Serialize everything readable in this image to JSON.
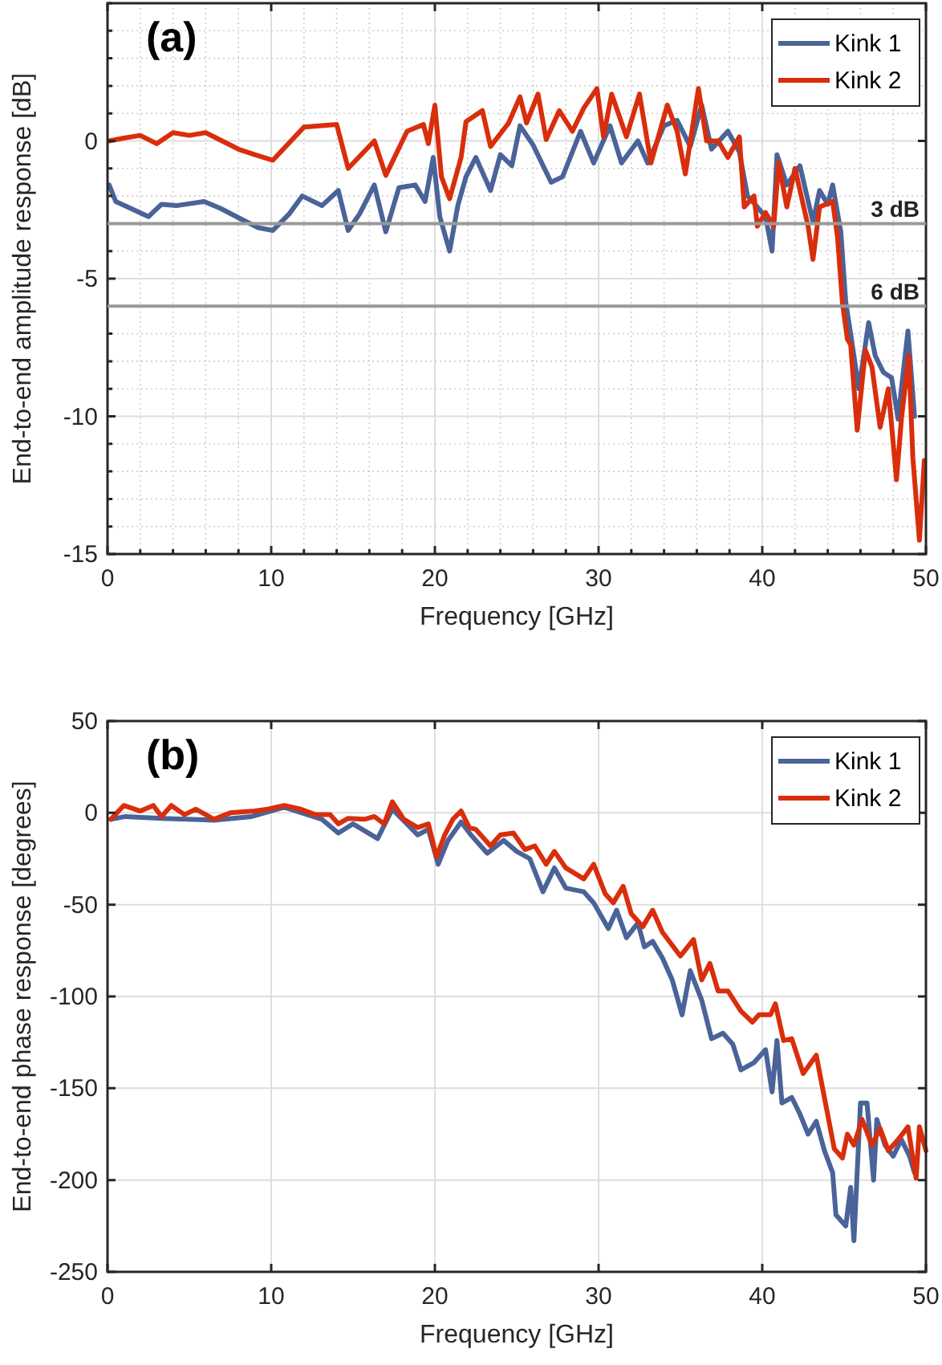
{
  "chart_data": [
    {
      "type": "line",
      "annotations": [
        "(a)"
      ],
      "xlabel": "Frequency [GHz]",
      "ylabel": "End-to-end amplitude response [dB]",
      "xlim": [
        0,
        50
      ],
      "ylim": [
        -15,
        5
      ],
      "xticks": [
        0,
        {
          "value": 2,
          "label": null
        },
        {
          "value": 4,
          "label": null
        },
        {
          "value": 6,
          "label": null
        },
        {
          "value": 8,
          "label": null
        },
        10,
        {
          "value": 12,
          "label": null
        },
        {
          "value": 14,
          "label": null
        },
        {
          "value": 16,
          "label": null
        },
        {
          "value": 18,
          "label": null
        },
        20,
        {
          "value": 22,
          "label": null
        },
        {
          "value": 24,
          "label": null
        },
        {
          "value": 26,
          "label": null
        },
        {
          "value": 28,
          "label": null
        },
        30,
        {
          "value": 32,
          "label": null
        },
        {
          "value": 34,
          "label": null
        },
        {
          "value": 36,
          "label": null
        },
        {
          "value": 38,
          "label": null
        },
        40,
        {
          "value": 42,
          "label": null
        },
        {
          "value": 44,
          "label": null
        },
        {
          "value": 46,
          "label": null
        },
        {
          "value": 48,
          "label": null
        },
        50
      ],
      "yticks": [
        -15,
        {
          "value": -14,
          "label": null
        },
        {
          "value": -13,
          "label": null
        },
        {
          "value": -12,
          "label": null
        },
        {
          "value": -11,
          "label": null
        },
        -10,
        {
          "value": -9,
          "label": null
        },
        {
          "value": -8,
          "label": null
        },
        {
          "value": -7,
          "label": null
        },
        -5,
        {
          "value": -4,
          "label": null
        },
        {
          "value": -2,
          "label": null
        },
        {
          "value": -1,
          "label": null
        },
        0,
        {
          "value": 1,
          "label": null
        },
        {
          "value": 2,
          "label": null
        },
        {
          "value": 3,
          "label": null
        },
        {
          "value": 4,
          "label": null
        },
        {
          "value": 5,
          "label": null
        }
      ],
      "grid": true,
      "legend": "top right",
      "line_style": "solid",
      "ref_lines": [
        {
          "axis": "y",
          "value": -3,
          "label": "3 dB",
          "color": "#999999"
        },
        {
          "axis": "y",
          "value": -6,
          "label": "6 dB",
          "color": "#999999"
        }
      ],
      "series": [
        {
          "name": "Kink 1",
          "color": "#4a6398",
          "x": [
            0.1,
            0.5,
            1.6,
            2.5,
            3.3,
            4.2,
            5.9,
            6.9,
            8.2,
            9.2,
            10.1,
            11.1,
            11.9,
            13.1,
            14.1,
            14.7,
            15.4,
            16.3,
            17,
            17.8,
            18.8,
            19.4,
            19.9,
            20.3,
            20.9,
            21.4,
            21.9,
            22.5,
            23.4,
            24,
            24.7,
            25.2,
            26,
            27.1,
            27.8,
            28.9,
            29.7,
            30.7,
            31.4,
            32.4,
            33,
            34,
            34.8,
            35.6,
            36.3,
            36.9,
            37.9,
            38.6,
            39.1,
            39.7,
            40.2,
            40.6,
            40.9,
            41.5,
            42.3,
            43.1,
            43.5,
            44,
            44.3,
            44.8,
            45.1,
            45.4,
            45.9,
            46.5,
            46.9,
            47.4,
            47.9,
            48.3,
            48.5,
            48.9,
            49.3
          ],
          "values": [
            -1.6,
            -2.2,
            -2.5,
            -2.75,
            -2.3,
            -2.35,
            -2.2,
            -2.45,
            -2.85,
            -3.15,
            -3.25,
            -2.65,
            -2,
            -2.35,
            -1.8,
            -3.25,
            -2.65,
            -1.6,
            -3.3,
            -1.7,
            -1.6,
            -2.2,
            -0.6,
            -2.75,
            -4,
            -2.35,
            -1.3,
            -0.6,
            -1.8,
            -0.5,
            -0.9,
            0.55,
            -0.15,
            -1.5,
            -1.3,
            0.35,
            -0.8,
            0.55,
            -0.8,
            0,
            -0.8,
            0.55,
            0.75,
            -0.2,
            1.3,
            -0.3,
            0.35,
            -0.4,
            -2,
            -2.4,
            -2.75,
            -4,
            -0.5,
            -1.6,
            -0.9,
            -2.95,
            -1.8,
            -2.3,
            -1.6,
            -3.3,
            -5.85,
            -7,
            -9,
            -6.6,
            -7.8,
            -8.4,
            -8.6,
            -10.1,
            -9,
            -6.9,
            -10
          ]
        },
        {
          "name": "Kink 2",
          "color": "#d92e0c",
          "x": [
            0.1,
            1,
            2,
            3,
            4,
            5,
            6,
            7,
            8,
            9,
            10.1,
            12,
            14,
            14.7,
            16.3,
            17,
            18.3,
            19.3,
            19.6,
            20,
            20.4,
            20.9,
            21.6,
            21.9,
            22.9,
            23.4,
            24.5,
            25.2,
            25.6,
            26.3,
            26.8,
            27.6,
            28.4,
            29.1,
            29.9,
            30.3,
            30.8,
            31.7,
            32.5,
            33.2,
            34.2,
            34.8,
            35.3,
            36.1,
            36.6,
            37.3,
            37.9,
            38.6,
            38.9,
            39.5,
            39.7,
            40.2,
            40.7,
            41,
            41.5,
            42,
            42.8,
            43.1,
            43.5,
            44.3,
            44.6,
            44.9,
            45.2,
            45.4,
            45.8,
            46.3,
            46.7,
            47.2,
            47.7,
            48.2,
            48.5,
            48.95,
            49.2,
            49.6,
            49.9
          ],
          "values": [
            0,
            0.1,
            0.2,
            -0.1,
            0.3,
            0.2,
            0.3,
            0,
            -0.3,
            -0.5,
            -0.7,
            0.5,
            0.6,
            -1,
            0,
            -1.25,
            0.35,
            0.6,
            -0.1,
            1.3,
            -1.3,
            -2.1,
            -0.6,
            0.7,
            1.1,
            -0.2,
            0.65,
            1.6,
            0.65,
            1.7,
            0.05,
            1.1,
            0.35,
            1.2,
            1.9,
            0.15,
            1.7,
            0.15,
            1.7,
            -0.8,
            1.3,
            0.35,
            -1.2,
            1.9,
            0,
            0,
            -0.6,
            0.15,
            -2.4,
            -2,
            -3.1,
            -2.6,
            -3.1,
            -0.8,
            -2.4,
            -1,
            -3.1,
            -4.3,
            -2.4,
            -2.2,
            -3.5,
            -5.9,
            -7.2,
            -7.4,
            -10.5,
            -7.6,
            -8.2,
            -10.4,
            -9,
            -12.3,
            -10.1,
            -7.8,
            -11.5,
            -14.5,
            -11.6
          ]
        }
      ]
    },
    {
      "type": "line",
      "annotations": [
        "(b)"
      ],
      "xlabel": "Frequency [GHz]",
      "ylabel": "End-to-end phase response [degrees]",
      "xlim": [
        0,
        50
      ],
      "ylim": [
        -250,
        50
      ],
      "xticks": [
        0,
        10,
        20,
        30,
        40,
        50
      ],
      "yticks": [
        -250,
        -200,
        -150,
        -100,
        -50,
        0,
        50
      ],
      "grid": true,
      "legend": "top right",
      "line_style": "solid",
      "series": [
        {
          "name": "Kink 1",
          "color": "#4a6398",
          "x": [
            0.2,
            1.1,
            3.3,
            6.5,
            8.8,
            10.8,
            13.1,
            14.1,
            15,
            16.5,
            17.4,
            18.95,
            19.6,
            20.2,
            20.8,
            21.6,
            22.2,
            23.2,
            24.2,
            25,
            25.8,
            26.6,
            27.3,
            28,
            29.1,
            29.7,
            30.6,
            31.1,
            31.7,
            32.4,
            32.8,
            33.3,
            33.9,
            34.5,
            35.1,
            35.6,
            36.3,
            36.9,
            37.6,
            38.2,
            38.7,
            39.5,
            40.2,
            40.6,
            40.9,
            41.2,
            41.8,
            42.3,
            42.8,
            43.3,
            43.8,
            44.3,
            44.5,
            45.1,
            45.4,
            45.6,
            46,
            46.4,
            46.8,
            47,
            47.5,
            48,
            48.5,
            49,
            49.3
          ],
          "values": [
            -3.5,
            -2,
            -3,
            -4,
            -2,
            3,
            -3.5,
            -11,
            -6,
            -14,
            2,
            -12,
            -9,
            -28,
            -15,
            -5,
            -12,
            -22,
            -15,
            -21,
            -25,
            -43,
            -30,
            -41,
            -43,
            -49,
            -63,
            -53,
            -68,
            -60,
            -73,
            -70,
            -79,
            -91,
            -110,
            -86,
            -102,
            -123,
            -120,
            -126,
            -140,
            -136,
            -129,
            -152,
            -124,
            -158,
            -155,
            -164,
            -175,
            -168,
            -184,
            -196,
            -219,
            -225,
            -204,
            -233,
            -158,
            -158,
            -200,
            -167,
            -181,
            -187,
            -178,
            -187,
            -196
          ]
        },
        {
          "name": "Kink 2",
          "color": "#d92e0c",
          "x": [
            0.2,
            1,
            2,
            2.8,
            3.3,
            3.9,
            4.7,
            5.4,
            6.5,
            7.5,
            9,
            9.8,
            10.8,
            11.8,
            12.7,
            13.6,
            14.1,
            14.7,
            15.7,
            16.3,
            16.9,
            17.4,
            18.1,
            18.95,
            19.6,
            20.1,
            20.6,
            21.1,
            21.6,
            22.1,
            22.5,
            23.4,
            24,
            24.8,
            25.5,
            26.1,
            26.8,
            27.3,
            28,
            29.1,
            29.7,
            30.4,
            30.9,
            31.5,
            32,
            32.7,
            33.3,
            33.9,
            35,
            35.8,
            36.3,
            36.8,
            37.3,
            37.9,
            38.7,
            39.4,
            39.8,
            40.5,
            40.8,
            41.3,
            41.8,
            42.5,
            43.3,
            43.6,
            44.4,
            44.9,
            45.2,
            45.6,
            46.1,
            46.7,
            47.2,
            47.7,
            48.3,
            48.9,
            49.4,
            49.6,
            50
          ],
          "values": [
            -3.5,
            4,
            1,
            4,
            -2,
            4,
            -1,
            2,
            -3.5,
            0,
            1,
            2,
            4,
            2,
            -1,
            -1,
            -6,
            -3,
            -3.5,
            -2,
            -6,
            6,
            -3.5,
            -8,
            -6,
            -24,
            -12,
            -3.5,
            1,
            -8,
            -9,
            -18,
            -12,
            -11,
            -20,
            -18,
            -28,
            -21,
            -30,
            -36,
            -28,
            -44,
            -49,
            -40,
            -55,
            -62,
            -53,
            -65,
            -78,
            -69,
            -91,
            -82,
            -97,
            -97,
            -108,
            -114,
            -110,
            -110,
            -104,
            -124,
            -123,
            -142,
            -132,
            -146,
            -183,
            -188,
            -175,
            -181,
            -167,
            -181,
            -172,
            -184,
            -178,
            -171,
            -199,
            -171,
            -184
          ]
        }
      ]
    }
  ]
}
